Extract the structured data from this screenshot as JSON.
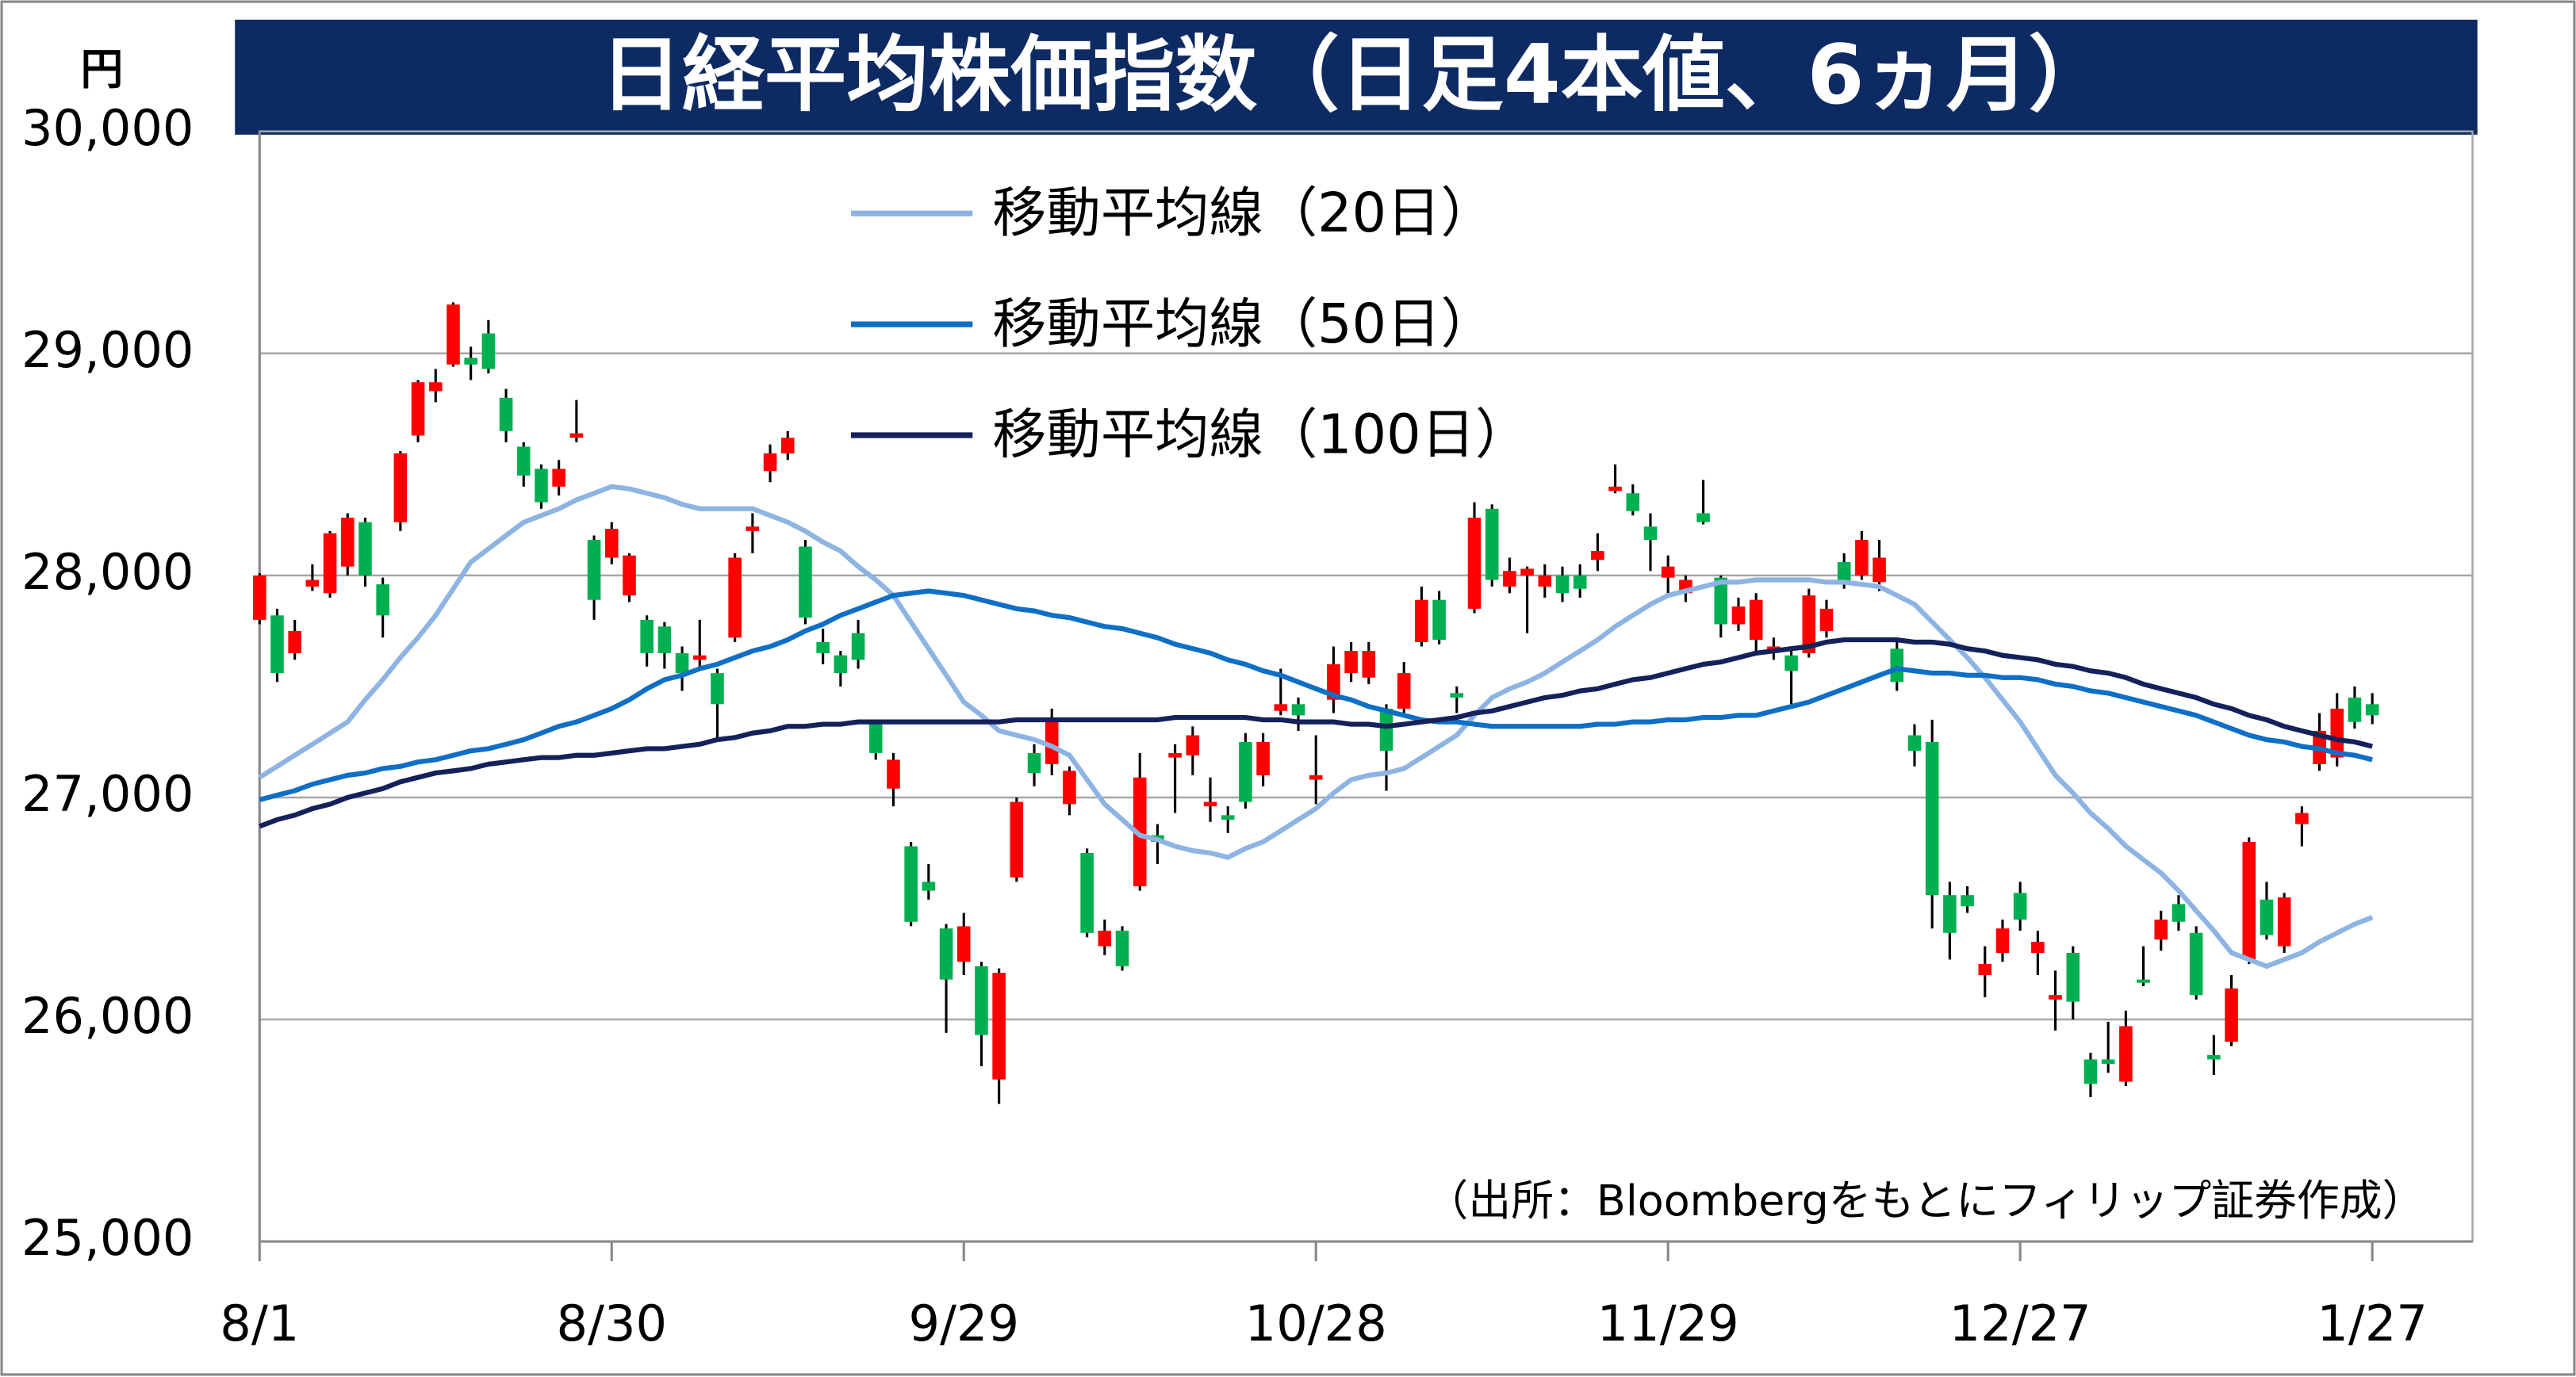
{
  "chart_data": {
    "type": "candlestick",
    "title": "日経平均株価指数（日足4本値、6ヵ月）",
    "y_unit": "円",
    "note": "（出所：Bloombergをもとにフィリップ証券作成）",
    "categories": [
      "8/1",
      null,
      null,
      null,
      null,
      null,
      null,
      null,
      null,
      null,
      null,
      null,
      null,
      null,
      null,
      null,
      null,
      null,
      null,
      null,
      "8/30",
      null,
      null,
      null,
      null,
      null,
      null,
      null,
      null,
      null,
      null,
      null,
      null,
      null,
      null,
      null,
      null,
      null,
      null,
      null,
      "9/29",
      null,
      null,
      null,
      null,
      null,
      null,
      null,
      null,
      null,
      null,
      null,
      null,
      null,
      null,
      null,
      null,
      null,
      null,
      null,
      "10/28",
      null,
      null,
      null,
      null,
      null,
      null,
      null,
      null,
      null,
      null,
      null,
      null,
      null,
      null,
      null,
      null,
      null,
      null,
      null,
      "11/29",
      null,
      null,
      null,
      null,
      null,
      null,
      null,
      null,
      null,
      null,
      null,
      null,
      null,
      null,
      null,
      null,
      null,
      null,
      null,
      "12/27",
      null,
      null,
      null,
      null,
      null,
      null,
      null,
      null,
      null,
      null,
      null,
      null,
      null,
      null,
      null,
      null,
      null,
      null,
      null,
      "1/27"
    ],
    "open": [
      27800,
      27820,
      27650,
      27950,
      27920,
      28040,
      28240,
      27960,
      28240,
      28630,
      28830,
      28950,
      28980,
      29090,
      28800,
      28580,
      28480,
      28400,
      28620,
      28160,
      28080,
      27910,
      27800,
      27770,
      27650,
      27620,
      27560,
      27720,
      28200,
      28470,
      28550,
      28130,
      27700,
      27640,
      27740,
      27330,
      27040,
      26780,
      26620,
      26410,
      26260,
      26240,
      25730,
      26640,
      27200,
      27150,
      26970,
      26750,
      26330,
      26400,
      26600,
      26830,
      27180,
      27190,
      26960,
      26920,
      27250,
      27100,
      27390,
      27420,
      27080,
      27440,
      27560,
      27540,
      27400,
      27400,
      27700,
      27890,
      27470,
      27850,
      28300,
      27950,
      28000,
      27950,
      28000,
      28000,
      28070,
      28380,
      28370,
      28220,
      27990,
      27920,
      28280,
      27990,
      27780,
      27710,
      27660,
      27640,
      27650,
      27750,
      28060,
      28000,
      27970,
      27670,
      27280,
      27250,
      26560,
      26560,
      26200,
      26300,
      26570,
      26300,
      26090,
      26300,
      25820,
      25820,
      25720,
      26180,
      26360,
      26520,
      26390,
      25840,
      25900,
      26270,
      26540,
      26330,
      26880,
      27150,
      27180,
      27450,
      27420
    ],
    "high": [
      28010,
      27850,
      27800,
      28050,
      28200,
      28280,
      28260,
      27990,
      28560,
      28880,
      28930,
      29230,
      29030,
      29150,
      28840,
      28600,
      28500,
      28520,
      28790,
      28180,
      28240,
      28100,
      27820,
      27790,
      27680,
      27800,
      27580,
      28100,
      28280,
      28590,
      28650,
      28160,
      27760,
      27660,
      27800,
      27350,
      27200,
      26800,
      26700,
      26430,
      26480,
      26260,
      26230,
      27000,
      27240,
      27400,
      27140,
      26770,
      26450,
      26420,
      27200,
      26880,
      27240,
      27320,
      27090,
      26960,
      27290,
      27290,
      27580,
      27450,
      27280,
      27680,
      27700,
      27700,
      27420,
      27610,
      27950,
      27930,
      27500,
      28330,
      28320,
      28080,
      28040,
      28050,
      28040,
      28050,
      28190,
      28500,
      28410,
      28280,
      28090,
      28000,
      28430,
      28000,
      27900,
      27920,
      27720,
      27660,
      27940,
      27890,
      28100,
      28200,
      28160,
      27700,
      27330,
      27350,
      26620,
      26600,
      26330,
      26450,
      26620,
      26400,
      26220,
      26330,
      25850,
      25990,
      26040,
      26330,
      26490,
      26560,
      26420,
      25930,
      26200,
      26820,
      26620,
      26570,
      26960,
      27380,
      27470,
      27500,
      27470
    ],
    "low": [
      27780,
      27520,
      27620,
      27930,
      27900,
      28000,
      27950,
      27720,
      28200,
      28600,
      28780,
      28940,
      28880,
      28910,
      28600,
      28400,
      28300,
      28360,
      28600,
      27800,
      28050,
      27880,
      27590,
      27580,
      27480,
      27580,
      27260,
      27700,
      28100,
      28420,
      28520,
      27780,
      27600,
      27500,
      27580,
      27170,
      26960,
      26420,
      26540,
      25940,
      26200,
      25790,
      25620,
      26620,
      27050,
      27100,
      26920,
      26370,
      26290,
      26220,
      26580,
      26700,
      26930,
      27100,
      26890,
      26840,
      26950,
      27050,
      27370,
      27300,
      26970,
      27380,
      27520,
      27510,
      27030,
      27380,
      27680,
      27690,
      27380,
      27830,
      27950,
      27920,
      27740,
      27900,
      27880,
      27900,
      28020,
      28370,
      28270,
      28020,
      27920,
      27880,
      28230,
      27720,
      27750,
      27650,
      27620,
      27420,
      27630,
      27720,
      27940,
      27980,
      27930,
      27480,
      27140,
      26410,
      26270,
      26480,
      26100,
      26260,
      26400,
      26200,
      25950,
      26000,
      25650,
      25760,
      25700,
      26150,
      26310,
      26400,
      26090,
      25750,
      25880,
      26250,
      26360,
      26300,
      26780,
      27120,
      27140,
      27310,
      27330
    ],
    "close": [
      28000,
      27560,
      27750,
      27980,
      28190,
      28260,
      28000,
      27820,
      28550,
      28870,
      28870,
      29220,
      28950,
      28930,
      28650,
      28450,
      28330,
      28480,
      28640,
      27890,
      28210,
      28090,
      27650,
      27650,
      27560,
      27640,
      27420,
      28080,
      28220,
      28550,
      28620,
      27810,
      27650,
      27560,
      27620,
      27200,
      27170,
      26440,
      26580,
      26180,
      26420,
      25930,
      26210,
      26980,
      27110,
      27340,
      27120,
      26390,
      26400,
      26240,
      27090,
      26800,
      27200,
      27280,
      26980,
      26900,
      26980,
      27250,
      27420,
      27370,
      27100,
      27600,
      27660,
      27660,
      27210,
      27560,
      27890,
      27710,
      27450,
      28260,
      27980,
      28020,
      28030,
      28000,
      27920,
      27940,
      28110,
      28400,
      28290,
      28160,
      28040,
      27980,
      28240,
      27780,
      27860,
      27890,
      27680,
      27570,
      27910,
      27850,
      27970,
      28160,
      28080,
      27520,
      27210,
      26560,
      26390,
      26510,
      26250,
      26410,
      26450,
      26350,
      26110,
      26080,
      25710,
      25800,
      25970,
      26170,
      26450,
      26440,
      26110,
      25820,
      26140,
      26800,
      26380,
      26550,
      26930,
      27300,
      27400,
      27340,
      27370
    ],
    "up_color": "#ff0000",
    "down_color": "#00b050",
    "lines": [
      {
        "name": "移動平均線（20日）",
        "color": "#8db4e2",
        "values": [
          27090,
          27140,
          27190,
          27240,
          27290,
          27340,
          27440,
          27530,
          27630,
          27720,
          27820,
          27940,
          28060,
          28120,
          28180,
          28240,
          28270,
          28300,
          28340,
          28370,
          28400,
          28390,
          28370,
          28350,
          28320,
          28300,
          28300,
          28300,
          28300,
          28270,
          28240,
          28200,
          28150,
          28110,
          28040,
          27980,
          27910,
          27790,
          27670,
          27550,
          27430,
          27370,
          27300,
          27280,
          27260,
          27230,
          27190,
          27080,
          26970,
          26900,
          26830,
          26810,
          26780,
          26760,
          26750,
          26730,
          26770,
          26800,
          26850,
          26900,
          26950,
          27020,
          27080,
          27100,
          27110,
          27130,
          27180,
          27230,
          27280,
          27370,
          27450,
          27490,
          27520,
          27560,
          27610,
          27660,
          27710,
          27770,
          27820,
          27870,
          27910,
          27930,
          27950,
          27970,
          27970,
          27980,
          27980,
          27980,
          27980,
          27970,
          27970,
          27960,
          27950,
          27910,
          27870,
          27790,
          27710,
          27630,
          27540,
          27440,
          27340,
          27220,
          27100,
          27020,
          26930,
          26860,
          26780,
          26720,
          26660,
          26580,
          26490,
          26400,
          26300,
          26270,
          26240,
          26270,
          26300,
          26350,
          26390,
          26430,
          26460
        ]
      },
      {
        "name": "移動平均線（50日）",
        "color": "#0f6fc6",
        "values": [
          26990,
          27010,
          27030,
          27060,
          27080,
          27100,
          27110,
          27130,
          27140,
          27160,
          27170,
          27190,
          27210,
          27220,
          27240,
          27260,
          27290,
          27320,
          27340,
          27370,
          27400,
          27440,
          27490,
          27530,
          27550,
          27580,
          27600,
          27630,
          27660,
          27680,
          27710,
          27750,
          27780,
          27820,
          27850,
          27880,
          27910,
          27920,
          27930,
          27920,
          27910,
          27890,
          27870,
          27850,
          27840,
          27820,
          27810,
          27790,
          27770,
          27760,
          27740,
          27720,
          27690,
          27670,
          27650,
          27620,
          27600,
          27570,
          27550,
          27520,
          27490,
          27460,
          27440,
          27410,
          27390,
          27370,
          27350,
          27340,
          27340,
          27330,
          27320,
          27320,
          27320,
          27320,
          27320,
          27320,
          27330,
          27330,
          27340,
          27340,
          27350,
          27350,
          27360,
          27360,
          27370,
          27370,
          27390,
          27410,
          27430,
          27460,
          27490,
          27520,
          27550,
          27580,
          27570,
          27560,
          27560,
          27550,
          27550,
          27540,
          27540,
          27530,
          27510,
          27500,
          27480,
          27470,
          27450,
          27430,
          27410,
          27390,
          27370,
          27340,
          27310,
          27280,
          27260,
          27250,
          27230,
          27220,
          27200,
          27190,
          27170
        ]
      },
      {
        "name": "移動平均線（100日）",
        "color": "#14215a",
        "values": [
          26870,
          26900,
          26920,
          26950,
          26970,
          27000,
          27020,
          27040,
          27070,
          27090,
          27110,
          27120,
          27130,
          27150,
          27160,
          27170,
          27180,
          27180,
          27190,
          27190,
          27200,
          27210,
          27220,
          27220,
          27230,
          27240,
          27260,
          27270,
          27290,
          27300,
          27320,
          27320,
          27330,
          27330,
          27340,
          27340,
          27340,
          27340,
          27340,
          27340,
          27340,
          27340,
          27340,
          27350,
          27350,
          27350,
          27350,
          27350,
          27350,
          27350,
          27350,
          27350,
          27360,
          27360,
          27360,
          27360,
          27360,
          27350,
          27350,
          27340,
          27340,
          27340,
          27330,
          27330,
          27320,
          27330,
          27340,
          27350,
          27360,
          27380,
          27390,
          27410,
          27430,
          27450,
          27460,
          27480,
          27490,
          27510,
          27530,
          27540,
          27560,
          27580,
          27600,
          27610,
          27630,
          27650,
          27660,
          27670,
          27680,
          27700,
          27710,
          27710,
          27710,
          27710,
          27700,
          27700,
          27690,
          27670,
          27660,
          27640,
          27630,
          27620,
          27600,
          27590,
          27570,
          27560,
          27540,
          27510,
          27490,
          27470,
          27450,
          27420,
          27400,
          27370,
          27350,
          27320,
          27300,
          27280,
          27260,
          27250,
          27230
        ]
      }
    ],
    "ylim": [
      25000,
      30000
    ],
    "yticks": [
      {
        "value": 25000,
        "label": "25,000"
      },
      {
        "value": 26000,
        "label": "26,000"
      },
      {
        "value": 27000,
        "label": "27,000"
      },
      {
        "value": 28000,
        "label": "28,000"
      },
      {
        "value": 29000,
        "label": "29,000"
      },
      {
        "value": 30000,
        "label": "30,000"
      }
    ],
    "grid": true
  }
}
